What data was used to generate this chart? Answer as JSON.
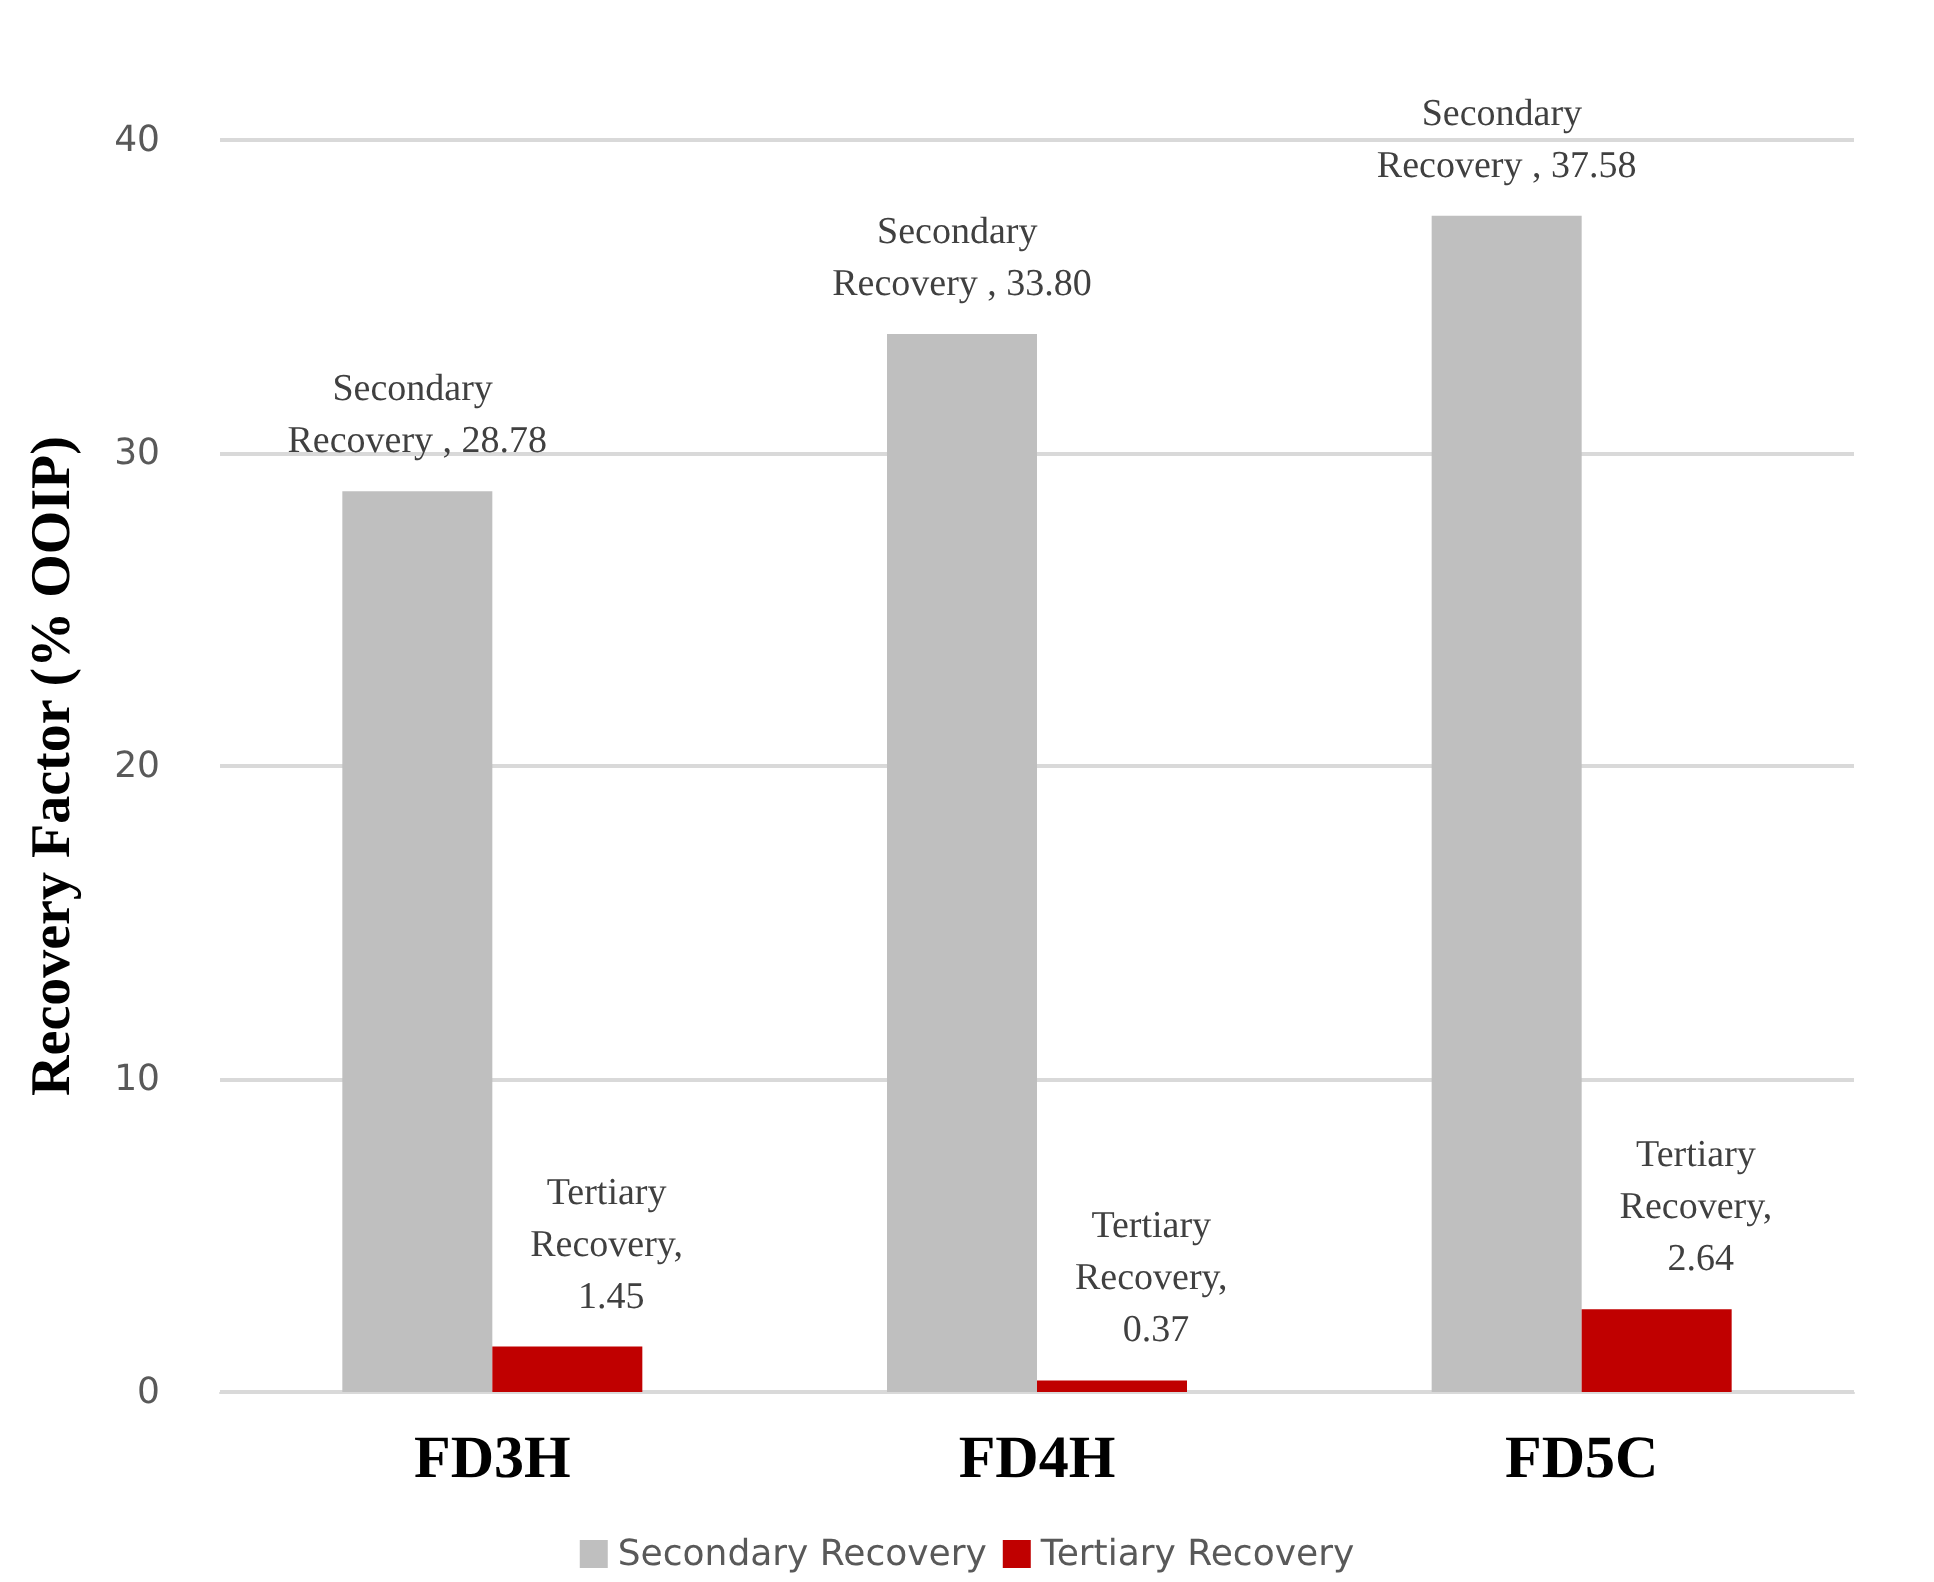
{
  "chart_data": {
    "type": "bar",
    "ylabel": "Recovery Factor (% OOIP)",
    "categories": [
      "FD3H",
      "FD4H",
      "FD5C"
    ],
    "series": [
      {
        "name": "Secondary Recovery",
        "color": "#bfbfbf",
        "values": [
          28.78,
          33.8,
          37.58
        ],
        "value_labels": [
          "Secondary Recovery , 28.78",
          "Secondary Recovery , 33.80",
          "Secondary Recovery , 37.58"
        ]
      },
      {
        "name": "Tertiary Recovery",
        "color": "#c00000",
        "values": [
          1.45,
          0.37,
          2.64
        ],
        "value_labels": [
          "Tertiary Recovery, 1.45",
          "Tertiary Recovery, 0.37",
          "Tertiary Recovery, 2.64"
        ]
      }
    ],
    "ylim": [
      0,
      40
    ],
    "yticks": [
      0,
      10,
      20,
      30,
      40
    ],
    "grid": "y",
    "legend": "bottom"
  }
}
